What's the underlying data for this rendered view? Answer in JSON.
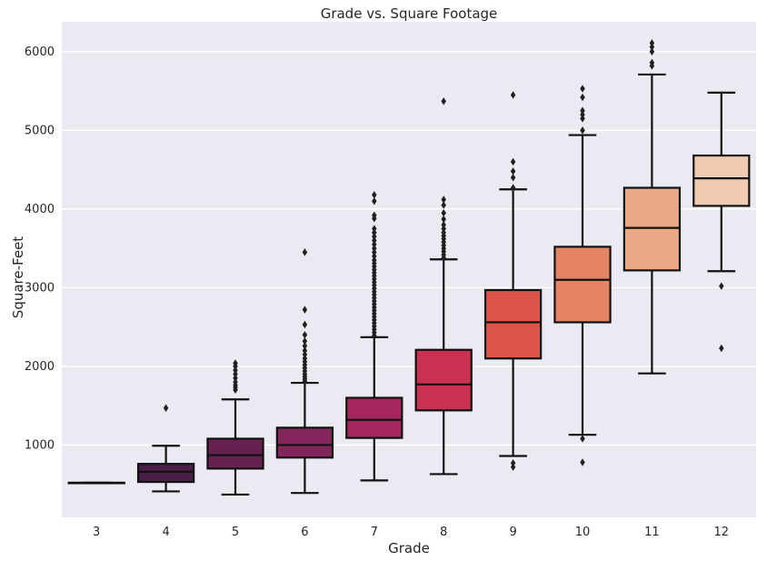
{
  "chart_data": {
    "type": "box",
    "title": "Grade vs. Square Footage",
    "xlabel": "Grade",
    "ylabel": "Square-Feet",
    "ylim": [
      80,
      6380
    ],
    "yticks": [
      1000,
      2000,
      3000,
      4000,
      5000,
      6000
    ],
    "grid": true,
    "categories": [
      "3",
      "4",
      "5",
      "6",
      "7",
      "8",
      "9",
      "10",
      "11",
      "12"
    ],
    "colors": [
      "#2d1b3d",
      "#4a1e48",
      "#662151",
      "#83255a",
      "#a4265d",
      "#c8314f",
      "#dc5447",
      "#e48465",
      "#eaa884",
      "#f0cab0"
    ],
    "boxes": [
      {
        "grade": "3",
        "whislo": 520,
        "q1": 520,
        "med": 520,
        "q3": 520,
        "whishi": 520,
        "fliers": []
      },
      {
        "grade": "4",
        "whislo": 410,
        "q1": 530,
        "med": 660,
        "q3": 760,
        "whishi": 990,
        "fliers": [
          1470
        ]
      },
      {
        "grade": "5",
        "whislo": 370,
        "q1": 700,
        "med": 870,
        "q3": 1080,
        "whishi": 1580,
        "fliers": [
          1700,
          1730,
          1760,
          1800,
          1850,
          1900,
          1950,
          2000,
          2040
        ]
      },
      {
        "grade": "6",
        "whislo": 390,
        "q1": 840,
        "med": 1000,
        "q3": 1220,
        "whishi": 1790,
        "fliers": [
          1810,
          1840,
          1870,
          1900,
          1940,
          1980,
          2020,
          2060,
          2100,
          2150,
          2200,
          2260,
          2320,
          2400,
          2530,
          2720,
          3450
        ]
      },
      {
        "grade": "7",
        "whislo": 550,
        "q1": 1090,
        "med": 1320,
        "q3": 1600,
        "whishi": 2370,
        "fliers": [
          2390,
          2430,
          2470,
          2510,
          2550,
          2590,
          2630,
          2670,
          2710,
          2750,
          2790,
          2830,
          2870,
          2910,
          2950,
          2990,
          3030,
          3070,
          3110,
          3150,
          3190,
          3230,
          3270,
          3310,
          3350,
          3400,
          3450,
          3500,
          3550,
          3600,
          3650,
          3700,
          3750,
          3880,
          3920,
          4100,
          4180
        ]
      },
      {
        "grade": "8",
        "whislo": 630,
        "q1": 1440,
        "med": 1770,
        "q3": 2210,
        "whishi": 3360,
        "fliers": [
          3380,
          3420,
          3460,
          3500,
          3540,
          3580,
          3620,
          3660,
          3700,
          3750,
          3800,
          3870,
          3950,
          4050,
          4120,
          5370
        ]
      },
      {
        "grade": "9",
        "whislo": 860,
        "q1": 2100,
        "med": 2560,
        "q3": 2970,
        "whishi": 4250,
        "fliers": [
          720,
          770,
          4270,
          4400,
          4480,
          4600,
          5450
        ]
      },
      {
        "grade": "10",
        "whislo": 1130,
        "q1": 2560,
        "med": 3100,
        "q3": 3520,
        "whishi": 4940,
        "fliers": [
          780,
          1080,
          5000,
          5150,
          5200,
          5250,
          5420,
          5530
        ]
      },
      {
        "grade": "11",
        "whislo": 1910,
        "q1": 3220,
        "med": 3760,
        "q3": 4270,
        "whishi": 5710,
        "fliers": [
          5820,
          5860,
          6000,
          6060,
          6110
        ]
      },
      {
        "grade": "12",
        "whislo": 3210,
        "q1": 4040,
        "med": 4390,
        "q3": 4680,
        "whishi": 5480,
        "fliers": [
          2230,
          3020
        ]
      }
    ]
  }
}
